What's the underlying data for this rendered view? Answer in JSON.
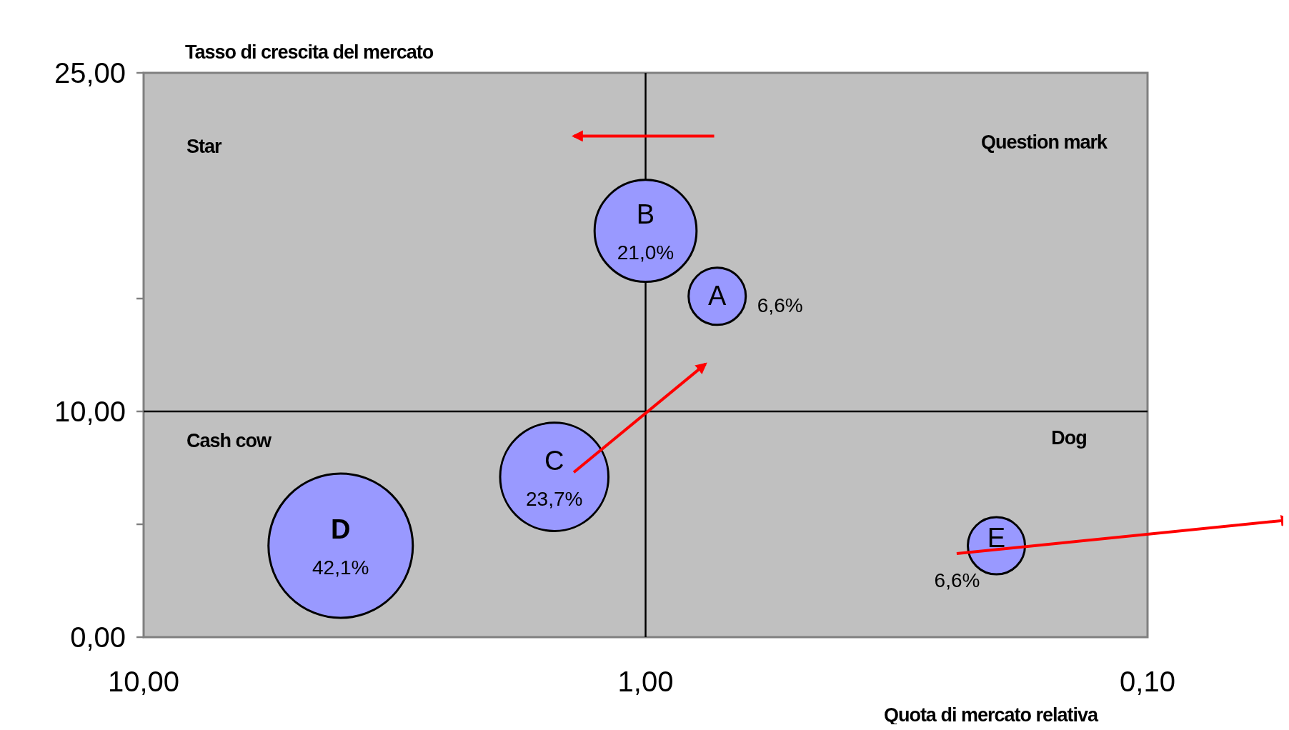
{
  "chart_data": {
    "type": "bubble",
    "xlabel": "Quota di mercato relativa",
    "ylabel": "Tasso di crescita del mercato",
    "log": "x",
    "xlim": [
      10,
      0.1
    ],
    "xticks": [
      {
        "value": 10,
        "label": "10,00"
      },
      {
        "value": 1,
        "label": "1,00"
      },
      {
        "value": 0.1,
        "label": "0,10"
      }
    ],
    "ylim": [
      0,
      25
    ],
    "yticks": [
      {
        "value": 0,
        "label": "0,00"
      },
      {
        "value": 5,
        "label": null
      },
      {
        "value": 10,
        "label": "10,00"
      },
      {
        "value": 15,
        "label": null
      },
      {
        "value": 25,
        "label": "25,00"
      }
    ],
    "grid": false,
    "legend": false,
    "series": [
      {
        "name": "A",
        "color": "#9999ff",
        "x": [
          0.72
        ],
        "values": [
          15.1
        ],
        "sizes": [
          0.157
        ]
      },
      {
        "name": "B",
        "color": "#9999ff",
        "x": [
          1.0
        ],
        "values": [
          18.0
        ],
        "sizes": [
          0.499
        ]
      },
      {
        "name": "C",
        "color": "#9999ff",
        "x": [
          1.52
        ],
        "values": [
          7.1
        ],
        "sizes": [
          0.563
        ]
      },
      {
        "name": "D",
        "color": "#9999ff",
        "x": [
          4.05
        ],
        "values": [
          4.05
        ],
        "sizes": [
          1
        ]
      },
      {
        "name": "E",
        "color": "#9999ff",
        "x": [
          0.2
        ],
        "values": [
          4.05
        ],
        "sizes": [
          0.157
        ]
      }
    ],
    "ref_lines": [
      {
        "axis": "x",
        "value": 1,
        "color": "#000000"
      },
      {
        "axis": "y",
        "value": 10,
        "color": "#000000"
      }
    ],
    "annotations": [
      "Star",
      "Question mark",
      "Cash cow",
      "Dog",
      {
        "text": "6,6%",
        "x": 0.72,
        "y": 15.1
      },
      {
        "text": "21,0%",
        "x": 1.0,
        "y": 18.0
      },
      {
        "text": "23,7%",
        "x": 1.52,
        "y": 7.1
      },
      {
        "text": "42,1%",
        "x": 4.05,
        "y": 4.05
      },
      {
        "text": "6,6%",
        "x": 0.2,
        "y": 4.05
      }
    ]
  }
}
